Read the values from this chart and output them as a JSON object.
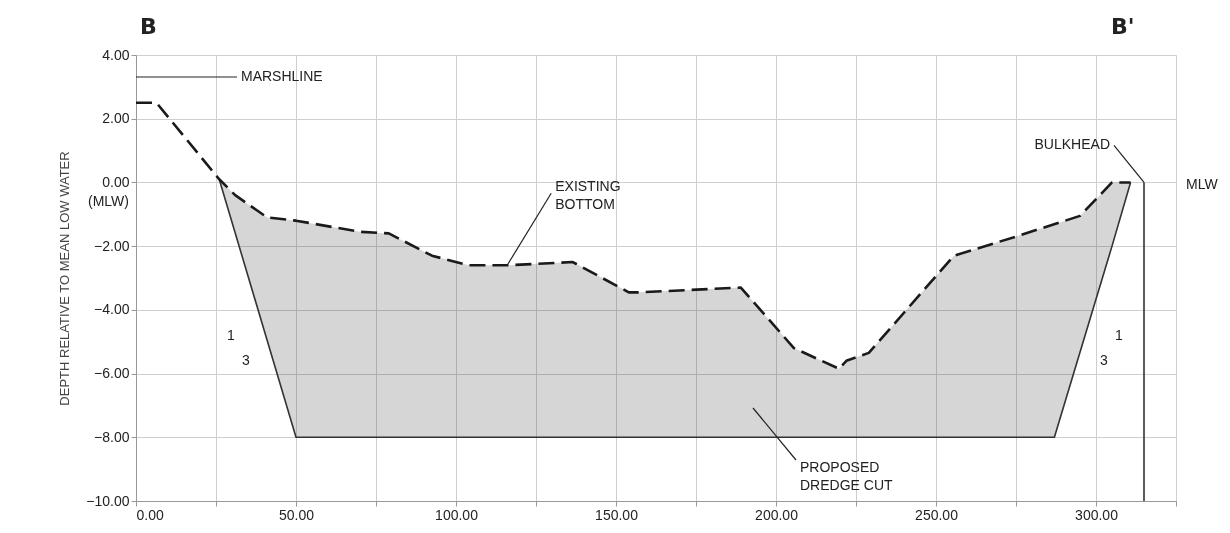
{
  "chart_data": {
    "type": "line",
    "ylabel": "DEPTH RELATIVE TO MEAN LOW WATER",
    "xlim": [
      0,
      325
    ],
    "xticks": [
      {
        "value": 0,
        "label": "0.00"
      },
      {
        "value": 25,
        "label": null
      },
      {
        "value": 50,
        "label": "50.00"
      },
      {
        "value": 75,
        "label": null
      },
      {
        "value": 100,
        "label": "100.00"
      },
      {
        "value": 125,
        "label": null
      },
      {
        "value": 150,
        "label": "150.00"
      },
      {
        "value": 175,
        "label": null
      },
      {
        "value": 200,
        "label": "200.00"
      },
      {
        "value": 225,
        "label": null
      },
      {
        "value": 250,
        "label": "250.00"
      },
      {
        "value": 275,
        "label": null
      },
      {
        "value": 300,
        "label": "300.00"
      },
      {
        "value": 325,
        "label": null
      }
    ],
    "ylim": [
      -10,
      4
    ],
    "yticks": [
      {
        "value": -10,
        "label": "−10.00"
      },
      {
        "value": -8,
        "label": "−8.00"
      },
      {
        "value": -6,
        "label": "−6.00"
      },
      {
        "value": -4,
        "label": "−4.00"
      },
      {
        "value": -2,
        "label": "−2.00"
      },
      {
        "value": 0,
        "label": "0.00"
      },
      {
        "value": 2,
        "label": "2.00"
      },
      {
        "value": 4,
        "label": "4.00"
      }
    ],
    "grid": true,
    "series": [
      {
        "color": "#333333",
        "line_style": "solid",
        "x": [
          26,
          31,
          41,
          50,
          70,
          79,
          92.5,
          104,
          116,
          136.5,
          154,
          157.5,
          189,
          205.6,
          219.7,
          222,
          229,
          255.6,
          275,
          287,
          295,
          305,
          310.8
        ],
        "values": [
          0.1,
          -1.59,
          -4.96,
          -8,
          -8,
          -8,
          -8,
          -8,
          -8,
          -8,
          -8,
          -8,
          -8,
          -8,
          -8,
          -8,
          -8,
          -8,
          -8,
          -8,
          -5.33,
          -2,
          0
        ],
        "lower": [
          0.1,
          -1.59,
          -4.96,
          -8,
          -8,
          -8,
          -8,
          -8,
          -8,
          -8,
          -8,
          -8,
          -8,
          -8,
          -8,
          -8,
          -8,
          -8,
          -8,
          -8,
          -5.33,
          -2,
          0
        ],
        "upper": [
          0.1,
          -0.4,
          -1.1,
          -1.2,
          -1.55,
          -1.6,
          -2.3,
          -2.6,
          -2.6,
          -2.5,
          -3.45,
          -3.45,
          -3.3,
          -5.2,
          -5.85,
          -5.6,
          -5.35,
          -2.3,
          -1.7,
          -1.31,
          -1.05,
          0,
          0
        ]
      },
      {
        "color": "#1a1a1a",
        "line_style": "dashed",
        "x": [
          0,
          6.4,
          26,
          31,
          41,
          50,
          70,
          79,
          92.5,
          104,
          116,
          136.5,
          154,
          157.5,
          189,
          205.6,
          219.7,
          222,
          229,
          255.6,
          275,
          295,
          305,
          310.8
        ],
        "values": [
          2.5,
          2.5,
          0.1,
          -0.4,
          -1.1,
          -1.2,
          -1.55,
          -1.6,
          -2.3,
          -2.6,
          -2.6,
          -2.5,
          -3.45,
          -3.45,
          -3.3,
          -5.2,
          -5.85,
          -5.6,
          -5.35,
          -2.3,
          -1.7,
          -1.05,
          0,
          0
        ]
      },
      {
        "color": "#333333",
        "line_style": "solid",
        "x": [
          315,
          315
        ],
        "values": [
          0,
          -10
        ]
      }
    ],
    "annotations": [
      "B",
      "B'",
      "MARSHLINE",
      {
        "text": "EXISTING\nBOTTOM",
        "x": 116,
        "y": -2.6
      },
      "PROPOSED\nDREDGE CUT",
      {
        "text": "BULKHEAD",
        "x": 315,
        "y": 0
      },
      "MLW",
      "1",
      "3",
      "1",
      "3",
      "(MLW)"
    ]
  }
}
